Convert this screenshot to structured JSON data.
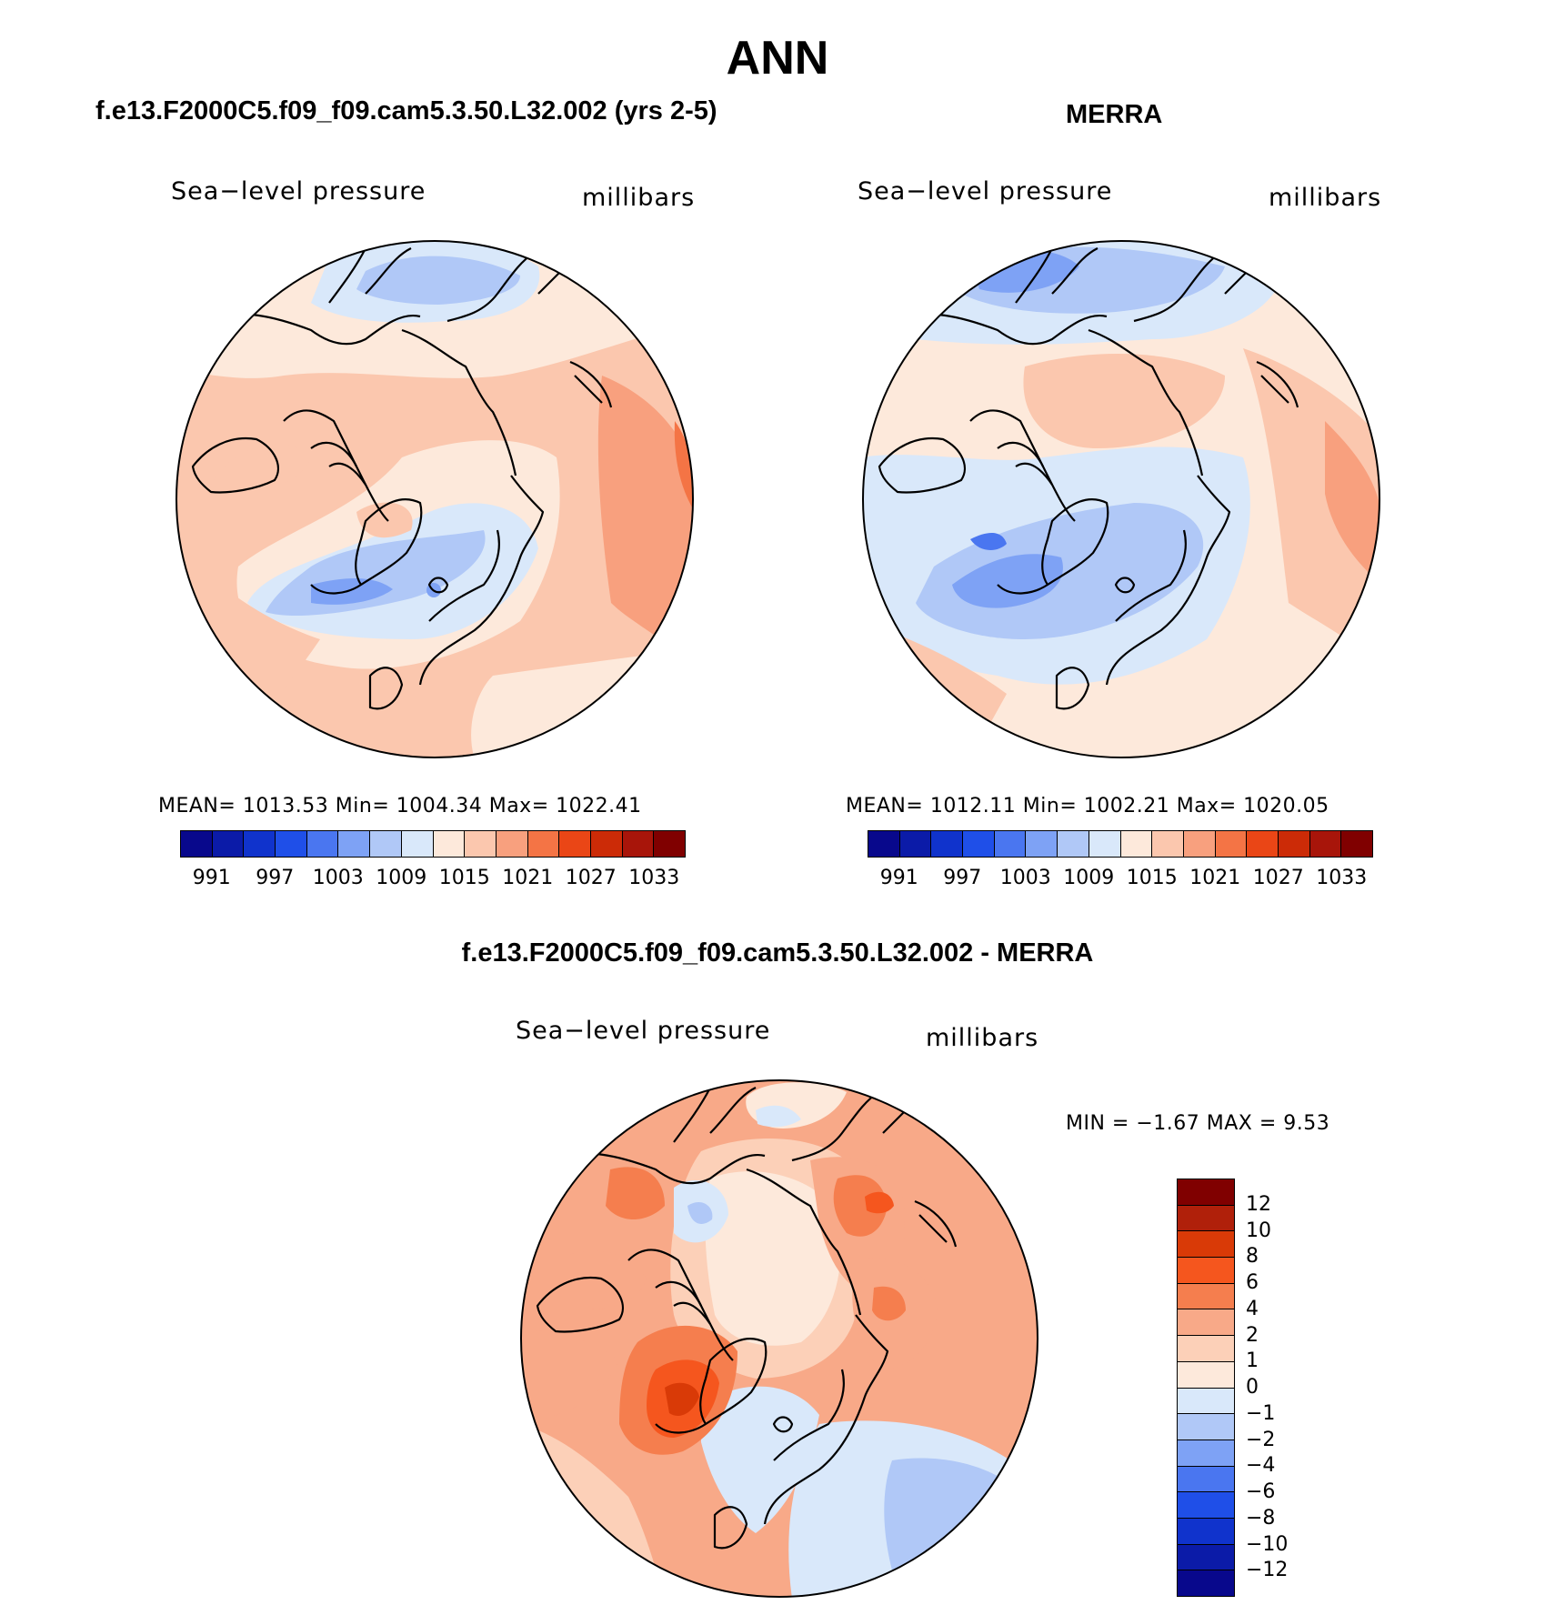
{
  "figure": {
    "title": "ANN"
  },
  "panels": {
    "model": {
      "title": "f.e13.F2000C5.f09_f09.cam5.3.50.L32.002 (yrs 2-5)",
      "variable": "Sea−level pressure",
      "units": "millibars",
      "stats": "MEAN=  1013.53    Min=  1004.34    Max=  1022.41"
    },
    "obs": {
      "title": "MERRA",
      "variable": "Sea−level pressure",
      "units": "millibars",
      "stats": "MEAN=  1012.11    Min=  1002.21    Max=  1020.05"
    },
    "diff": {
      "title": "f.e13.F2000C5.f09_f09.cam5.3.50.L32.002 - MERRA",
      "variable": "Sea−level pressure",
      "units": "millibars",
      "stats": "MIN =    −1.67  MAX =      9.53"
    }
  },
  "colorbars": {
    "abs": {
      "colors": [
        "#08088c",
        "#0b1ba8",
        "#1033cc",
        "#1f4fe8",
        "#4a76f0",
        "#7ea2f5",
        "#b0c8f7",
        "#d9e8fa",
        "#fde9db",
        "#fbc7ae",
        "#f8a07e",
        "#f47445",
        "#ea4616",
        "#cc2b07",
        "#a8150a",
        "#800000"
      ],
      "tick_labels": [
        "991",
        "997",
        "1003",
        "1009",
        "1015",
        "1021",
        "1027",
        "1033"
      ]
    },
    "diff": {
      "colors": [
        "#800000",
        "#b0200a",
        "#d93a07",
        "#f5561e",
        "#f57e4e",
        "#f8a988",
        "#fcd0b8",
        "#fde9db",
        "#d9e8fa",
        "#b0c8f7",
        "#7ea2f5",
        "#4a76f0",
        "#1f4fe8",
        "#1033cc",
        "#0b1ba8",
        "#08088c"
      ],
      "tick_labels": [
        "12",
        "10",
        "8",
        "6",
        "4",
        "2",
        "1",
        "0",
        "−1",
        "−2",
        "−4",
        "−6",
        "−8",
        "−10",
        "−12"
      ]
    }
  }
}
